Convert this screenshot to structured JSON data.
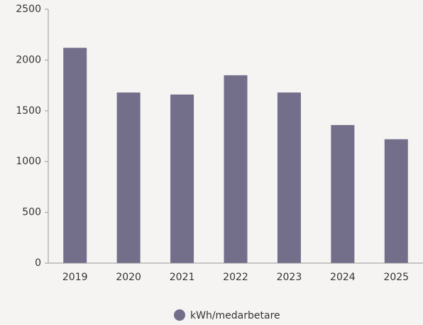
{
  "chart_data": {
    "type": "bar",
    "categories": [
      "2019",
      "2020",
      "2021",
      "2022",
      "2023",
      "2024",
      "2025"
    ],
    "series": [
      {
        "name": "kWh/medarbetare",
        "color": "#736e8a",
        "values": [
          2120,
          1680,
          1660,
          1850,
          1680,
          1360,
          1220
        ]
      }
    ],
    "ylim": [
      0,
      2500
    ],
    "yticks": [
      0,
      500,
      1000,
      1500,
      2000,
      2500
    ],
    "grid": false,
    "legend": "bottom"
  }
}
